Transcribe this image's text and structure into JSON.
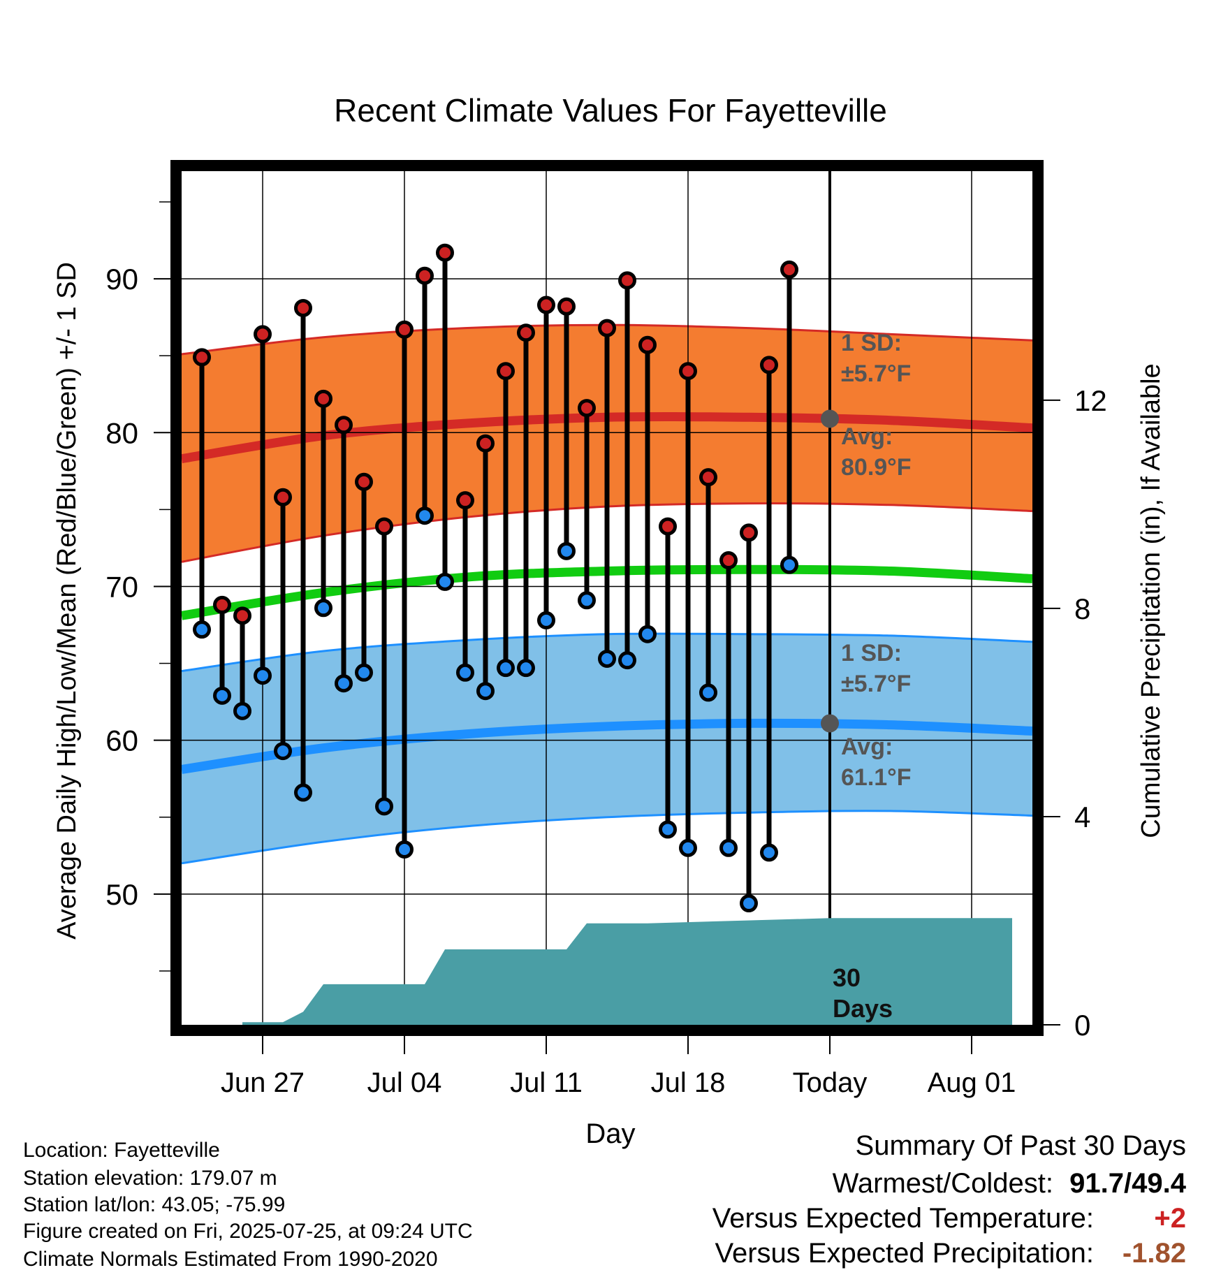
{
  "chart_data": {
    "type": "line",
    "title": "Recent Climate Values For Fayetteville",
    "xlabel": "Day",
    "ylabel": "Average Daily High/Low/Mean (Red/Blue/Green) +/- 1 SD",
    "y2label": "Cumulative Precipitation (in), If Available",
    "x_start": "2025-06-24",
    "xlim": [
      "2025-06-23",
      "2025-08-04"
    ],
    "ylim": [
      41.5,
      97
    ],
    "y_ticks": [
      50,
      60,
      70,
      80,
      90
    ],
    "y2lim": [
      0,
      16.4
    ],
    "y2_ticks": [
      0,
      4,
      8,
      12
    ],
    "x_ticks": [
      {
        "date": "2025-06-27",
        "label": "Jun 27"
      },
      {
        "date": "2025-07-04",
        "label": "Jul 04"
      },
      {
        "date": "2025-07-11",
        "label": "Jul 11"
      },
      {
        "date": "2025-07-18",
        "label": "Jul 18"
      },
      {
        "date": "2025-07-25",
        "label": "Today"
      },
      {
        "date": "2025-08-01",
        "label": "Aug 01"
      }
    ],
    "today": "2025-07-25",
    "grid": true,
    "observed": {
      "dates": [
        "2025-06-24",
        "2025-06-25",
        "2025-06-26",
        "2025-06-27",
        "2025-06-28",
        "2025-06-29",
        "2025-06-30",
        "2025-07-01",
        "2025-07-02",
        "2025-07-03",
        "2025-07-04",
        "2025-07-05",
        "2025-07-06",
        "2025-07-07",
        "2025-07-08",
        "2025-07-09",
        "2025-07-10",
        "2025-07-11",
        "2025-07-12",
        "2025-07-13",
        "2025-07-14",
        "2025-07-15",
        "2025-07-16",
        "2025-07-17",
        "2025-07-18",
        "2025-07-19",
        "2025-07-20",
        "2025-07-21",
        "2025-07-22",
        "2025-07-23",
        "2025-07-24"
      ],
      "high": [
        84.9,
        68.8,
        68.1,
        86.4,
        75.8,
        88.1,
        82.2,
        80.5,
        76.8,
        73.9,
        86.7,
        90.2,
        91.7,
        75.6,
        79.3,
        84.0,
        86.5,
        88.3,
        88.2,
        81.6,
        86.8,
        89.9,
        85.7,
        73.9,
        84.0,
        77.1,
        71.7,
        73.5,
        84.4,
        90.6,
        null
      ],
      "low": [
        67.2,
        62.9,
        61.9,
        64.2,
        59.3,
        56.6,
        68.6,
        63.7,
        64.4,
        55.7,
        52.9,
        74.6,
        70.3,
        64.4,
        63.2,
        64.7,
        64.7,
        67.8,
        72.3,
        69.1,
        65.3,
        65.2,
        66.9,
        54.2,
        53.0,
        63.1,
        53.0,
        49.4,
        52.7,
        71.4,
        null
      ]
    },
    "normals": {
      "dates": [
        "2025-06-23",
        "2025-06-30",
        "2025-07-07",
        "2025-07-14",
        "2025-07-21",
        "2025-07-28",
        "2025-08-04"
      ],
      "high_avg": [
        78.3,
        79.8,
        80.6,
        81.0,
        81.0,
        80.8,
        80.3
      ],
      "high_sd_upper": [
        85.1,
        86.2,
        86.8,
        87.0,
        86.8,
        86.4,
        86.0
      ],
      "high_sd_lower": [
        71.6,
        73.3,
        74.5,
        75.2,
        75.4,
        75.3,
        74.9
      ],
      "mean_avg": [
        68.1,
        69.6,
        70.6,
        71.0,
        71.1,
        71.0,
        70.5
      ],
      "low_avg": [
        58.1,
        59.5,
        60.4,
        60.9,
        61.1,
        61.0,
        60.6
      ],
      "low_sd_upper": [
        64.5,
        65.8,
        66.5,
        66.9,
        66.9,
        66.8,
        66.4
      ],
      "low_sd_lower": [
        52.0,
        53.4,
        54.4,
        55.0,
        55.3,
        55.4,
        55.1
      ]
    },
    "precip_cumulative": {
      "dates": [
        "2025-06-26",
        "2025-06-28",
        "2025-06-29",
        "2025-06-30",
        "2025-07-05",
        "2025-07-06",
        "2025-07-12",
        "2025-07-13",
        "2025-07-16",
        "2025-07-25",
        "2025-08-03"
      ],
      "values": [
        0.05,
        0.05,
        0.25,
        0.78,
        0.78,
        1.45,
        1.45,
        1.95,
        1.95,
        2.05,
        2.05
      ]
    },
    "annotations": {
      "high_sd": "1 SD:",
      "high_sd_value": "±5.7°F",
      "high_avg": "Avg:",
      "high_avg_value": "80.9°F",
      "low_sd": "1 SD:",
      "low_sd_value": "±5.7°F",
      "low_avg": "Avg:",
      "low_avg_value": "61.1°F",
      "precip_days": "30",
      "precip_days_label": "Days"
    },
    "colors": {
      "high_band": "#f47c30",
      "high_line": "#d42a26",
      "mean_line": "#11cc11",
      "low_band": "#80c0e8",
      "low_line": "#1e90ff",
      "precip": "#4a9ea5",
      "high_marker": "#cc2222",
      "low_marker": "#2288ee",
      "annotation": "#555555"
    }
  },
  "info": {
    "location": "Location: Fayetteville",
    "elevation": "Station elevation: 179.07 m",
    "latlon": "Station lat/lon: 43.05; -75.99",
    "created": "Figure created on Fri, 2025-07-25, at 09:24 UTC",
    "normals": "Climate Normals Estimated From 1990-2020"
  },
  "summary": {
    "title": "Summary Of Past 30 Days",
    "warmest_label": "Warmest/Coldest:",
    "warmest_value": "91.7/49.4",
    "temp_label": "Versus Expected Temperature:",
    "temp_value": "+2",
    "temp_color": "#cc2222",
    "precip_label": "Versus Expected Precipitation:",
    "precip_value": "-1.82",
    "precip_color": "#a0522d"
  }
}
